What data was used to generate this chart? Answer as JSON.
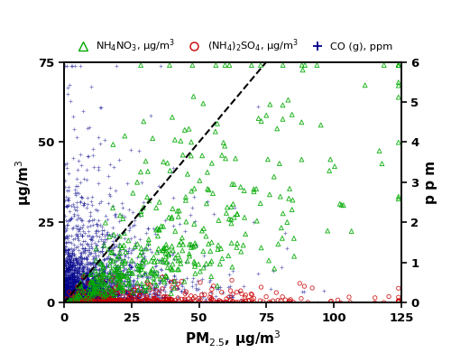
{
  "xlabel": "PM$_{2.5}$, μg/m$^3$",
  "ylabel_left": "μg/m$^3$",
  "ylabel_right": "p p m",
  "xlim": [
    0,
    125
  ],
  "ylim_left": [
    0,
    75
  ],
  "ylim_right": [
    0,
    6
  ],
  "xticks": [
    0,
    25,
    50,
    75,
    100,
    125
  ],
  "yticks_left": [
    0,
    25,
    50,
    75
  ],
  "yticks_right": [
    0,
    1,
    2,
    3,
    4,
    5,
    6
  ],
  "dashed_line_x": [
    0,
    75
  ],
  "dashed_line_y": [
    0,
    75
  ],
  "legend_labels": [
    "NH$_4$NO$_3$, μg/m$^3$",
    "(NH$_4$)$_2$SO$_4$, μg/m$^3$",
    "CO (g), ppm"
  ],
  "color_nh4no3": "#00aa00",
  "color_so4": "#cc0000",
  "color_co": "#00008b",
  "seed": 12,
  "n_nh4no3": 450,
  "n_so4": 350,
  "n_co": 3000
}
